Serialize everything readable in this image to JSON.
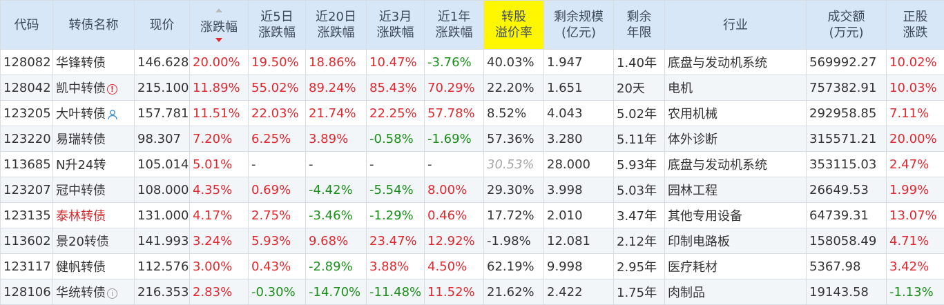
{
  "columns": [
    {
      "key": "code",
      "label": [
        "代码"
      ]
    },
    {
      "key": "name",
      "label": [
        "转债名称"
      ]
    },
    {
      "key": "price",
      "label": [
        "现价"
      ]
    },
    {
      "key": "change",
      "label": [
        "涨跌幅"
      ],
      "sorted": "desc"
    },
    {
      "key": "chg5d",
      "label": [
        "近5日",
        "涨跌幅"
      ]
    },
    {
      "key": "chg20d",
      "label": [
        "近20日",
        "涨跌幅"
      ]
    },
    {
      "key": "chg3m",
      "label": [
        "近3月",
        "涨跌幅"
      ]
    },
    {
      "key": "chg1y",
      "label": [
        "近1年",
        "涨跌幅"
      ]
    },
    {
      "key": "premium",
      "label": [
        "转股",
        "溢价率"
      ],
      "highlight": true
    },
    {
      "key": "scale",
      "label": [
        "剩余规模",
        "(亿元)"
      ]
    },
    {
      "key": "term",
      "label": [
        "剩余",
        "年限"
      ]
    },
    {
      "key": "industry",
      "label": [
        "行业"
      ]
    },
    {
      "key": "volume",
      "label": [
        "成交额",
        "(万元)"
      ]
    },
    {
      "key": "stock_chg",
      "label": [
        "正股",
        "涨跌"
      ]
    }
  ],
  "colors": {
    "up": "#e0282f",
    "down": "#1a8f1a",
    "header_bg": "#d7e7f7",
    "highlight": "#fff700",
    "code": "#2a6cb3"
  },
  "rows": [
    {
      "code": "128082",
      "name": "华锋转债",
      "price": "146.628",
      "change": "20.00%",
      "chg5d": "19.50%",
      "chg20d": "18.86%",
      "chg3m": "10.47%",
      "chg1y": "-3.76%",
      "premium": "40.03%",
      "scale": "1.947",
      "term": "1.40年",
      "industry": "底盘与发动机系统",
      "volume": "569992.27",
      "stock_chg": "10.02%"
    },
    {
      "code": "128042",
      "name": "凯中转债",
      "name_icon": "warning-icon",
      "price": "215.100",
      "change": "11.89%",
      "chg5d": "55.02%",
      "chg20d": "89.24%",
      "chg3m": "85.43%",
      "chg1y": "70.29%",
      "premium": "22.20%",
      "scale": "1.651",
      "term": "20天",
      "industry": "电机",
      "volume": "757382.91",
      "stock_chg": "10.03%"
    },
    {
      "code": "123205",
      "name": "大叶转债",
      "name_icon": "person-icon",
      "price": "157.781",
      "change": "11.51%",
      "chg5d": "22.03%",
      "chg20d": "21.74%",
      "chg3m": "22.25%",
      "chg1y": "57.78%",
      "premium": "8.52%",
      "scale": "4.043",
      "term": "5.02年",
      "industry": "农用机械",
      "volume": "292958.85",
      "stock_chg": "7.11%"
    },
    {
      "code": "123220",
      "name": "易瑞转债",
      "price": "98.307",
      "change": "7.20%",
      "chg5d": "6.25%",
      "chg20d": "3.89%",
      "chg3m": "-0.58%",
      "chg1y": "-1.69%",
      "premium": "57.36%",
      "scale": "3.280",
      "term": "5.11年",
      "industry": "体外诊断",
      "volume": "315571.21",
      "stock_chg": "20.00%"
    },
    {
      "code": "113685",
      "name": "N升24转",
      "price": "105.014",
      "change": "5.01%",
      "chg5d": "-",
      "chg20d": "-",
      "chg3m": "-",
      "chg1y": "-",
      "premium": "30.53%",
      "premium_muted": true,
      "scale": "28.000",
      "term": "5.93年",
      "industry": "底盘与发动机系统",
      "volume": "353115.03",
      "stock_chg": "2.47%"
    },
    {
      "code": "123207",
      "name": "冠中转债",
      "price": "108.000",
      "change": "4.35%",
      "chg5d": "0.69%",
      "chg20d": "-4.42%",
      "chg3m": "-5.54%",
      "chg1y": "8.00%",
      "premium": "29.30%",
      "scale": "3.998",
      "term": "5.03年",
      "industry": "园林工程",
      "volume": "26649.53",
      "stock_chg": "1.99%"
    },
    {
      "code": "123135",
      "name": "泰林转债",
      "name_red": true,
      "price": "131.000",
      "change": "4.17%",
      "chg5d": "2.75%",
      "chg20d": "-3.46%",
      "chg3m": "-1.29%",
      "chg1y": "0.46%",
      "premium": "17.72%",
      "scale": "2.010",
      "term": "3.47年",
      "industry": "其他专用设备",
      "volume": "64739.31",
      "stock_chg": "13.07%"
    },
    {
      "code": "113602",
      "name": "景20转债",
      "price": "141.993",
      "change": "3.24%",
      "chg5d": "5.93%",
      "chg20d": "9.68%",
      "chg3m": "23.47%",
      "chg1y": "12.92%",
      "premium": "-1.98%",
      "scale": "12.081",
      "term": "2.12年",
      "industry": "印制电路板",
      "volume": "158058.49",
      "stock_chg": "4.71%"
    },
    {
      "code": "123117",
      "name": "健帆转债",
      "price": "112.576",
      "change": "3.00%",
      "chg5d": "0.43%",
      "chg20d": "-2.89%",
      "chg3m": "3.88%",
      "chg1y": "4.50%",
      "premium": "62.19%",
      "scale": "9.998",
      "term": "2.95年",
      "industry": "医疗耗材",
      "volume": "5367.98",
      "stock_chg": "3.42%"
    },
    {
      "code": "128106",
      "name": "华统转债",
      "name_icon": "info-icon",
      "price": "216.353",
      "change": "2.83%",
      "chg5d": "-0.30%",
      "chg20d": "-14.70%",
      "chg3m": "-11.48%",
      "chg1y": "11.52%",
      "premium": "21.62%",
      "scale": "2.422",
      "term": "1.75年",
      "industry": "肉制品",
      "volume": "19143.58",
      "stock_chg": "-1.13%"
    }
  ]
}
